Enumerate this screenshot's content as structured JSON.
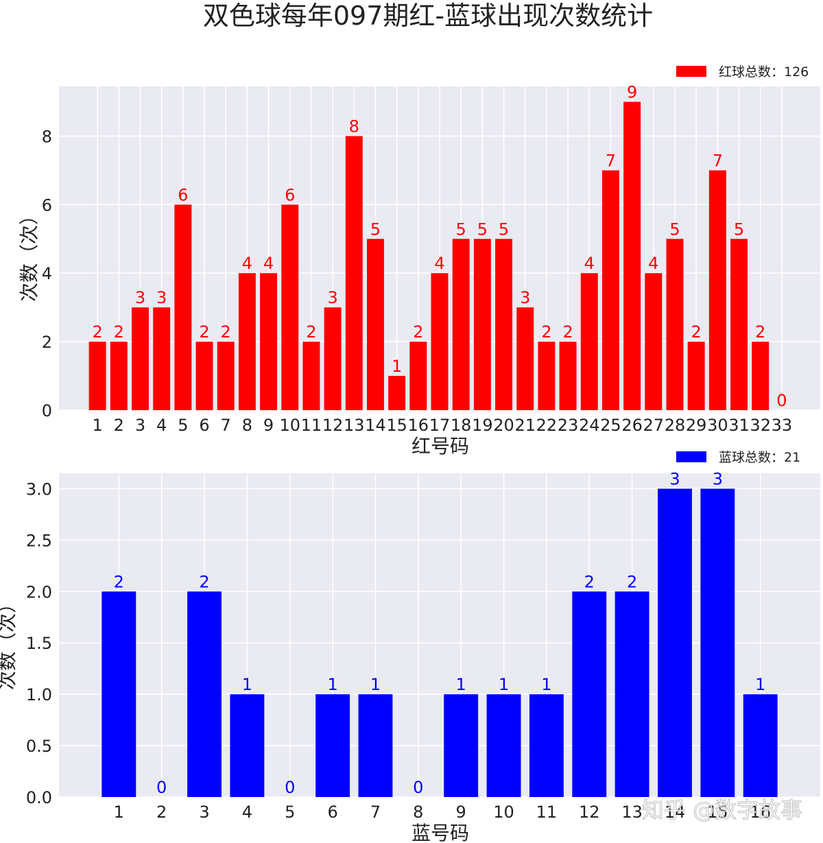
{
  "title": "双色球每年097期红-蓝球出现次数统计",
  "watermark": "知乎 @数字故事",
  "chart_data": [
    {
      "type": "bar",
      "color": "#ff0000",
      "xlabel": "红号码",
      "ylabel": "次数（次）",
      "legend": "红球总数：126",
      "legend_position": "top-right",
      "grid": true,
      "ylim": [
        0,
        9.45
      ],
      "yticks": [
        "0",
        "2",
        "4",
        "6",
        "8"
      ],
      "ytick_values": [
        0,
        2,
        4,
        6,
        8
      ],
      "categories": [
        "1",
        "2",
        "3",
        "4",
        "5",
        "6",
        "7",
        "8",
        "9",
        "10",
        "11",
        "12",
        "13",
        "14",
        "15",
        "16",
        "17",
        "18",
        "19",
        "20",
        "21",
        "22",
        "23",
        "24",
        "25",
        "26",
        "27",
        "28",
        "29",
        "30",
        "31",
        "32",
        "33"
      ],
      "values": [
        2,
        2,
        3,
        3,
        6,
        2,
        2,
        4,
        4,
        6,
        2,
        3,
        8,
        5,
        1,
        2,
        4,
        5,
        5,
        5,
        3,
        2,
        2,
        4,
        7,
        9,
        4,
        5,
        2,
        7,
        5,
        2,
        0
      ]
    },
    {
      "type": "bar",
      "color": "#0000ff",
      "xlabel": "蓝号码",
      "ylabel": "次数（次）",
      "legend": "蓝球总数：21",
      "legend_position": "top-right",
      "grid": true,
      "ylim": [
        0,
        3.15
      ],
      "yticks": [
        "0.0",
        "0.5",
        "1.0",
        "1.5",
        "2.0",
        "2.5",
        "3.0"
      ],
      "ytick_values": [
        0,
        0.5,
        1,
        1.5,
        2,
        2.5,
        3
      ],
      "categories": [
        "1",
        "2",
        "3",
        "4",
        "5",
        "6",
        "7",
        "8",
        "9",
        "10",
        "11",
        "12",
        "13",
        "14",
        "15",
        "16"
      ],
      "values": [
        2,
        0,
        2,
        1,
        0,
        1,
        1,
        0,
        1,
        1,
        1,
        2,
        2,
        3,
        3,
        1
      ]
    }
  ]
}
